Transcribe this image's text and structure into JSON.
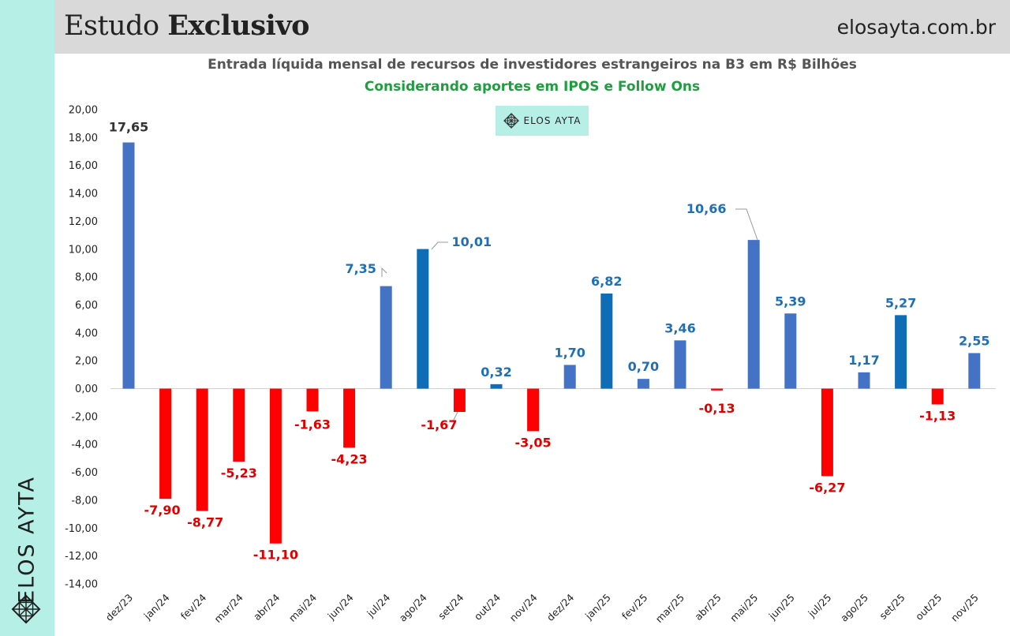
{
  "header": {
    "title_regular": "Estudo ",
    "title_bold": "Exclusivo",
    "site": "elosayta.com.br"
  },
  "sidebar": {
    "brand": "ELOS AYTA",
    "logo_icon": "diamond-lattice-icon"
  },
  "watermark": {
    "text": "ELOS AYTA",
    "icon": "diamond-lattice-icon"
  },
  "colors": {
    "positive": "#4472c4",
    "positive_highlight": "#0f6db5",
    "negative": "#ff0000",
    "label_positive": "#1f6fb5",
    "label_negative": "#e00000",
    "sidebar_bg": "#b6efe6",
    "header_bg": "#d9d9d9",
    "subtitle": "#1e9e3e"
  },
  "chart_data": {
    "type": "bar",
    "title": "Entrada líquida mensal de recursos de investidores estrangeiros na B3 em R$ Bilhões",
    "subtitle": "Considerando aportes em IPOS e Follow Ons",
    "categories": [
      "dez/23",
      "jan/24",
      "fev/24",
      "mar/24",
      "abr/24",
      "mai/24",
      "jun/24",
      "jul/24",
      "ago/24",
      "set/24",
      "out/24",
      "nov/24",
      "dez/24",
      "jan/25",
      "fev/25",
      "mar/25",
      "abr/25",
      "mai/25",
      "jun/25",
      "jul/25",
      "ago/25",
      "set/25",
      "out/25",
      "nov/25"
    ],
    "values": [
      17.65,
      -7.9,
      -8.77,
      -5.23,
      -11.1,
      -1.63,
      -4.23,
      7.35,
      10.01,
      -1.67,
      0.32,
      -3.05,
      1.7,
      6.82,
      0.7,
      3.46,
      -0.13,
      10.66,
      5.39,
      -6.27,
      1.17,
      5.27,
      -1.13,
      2.55
    ],
    "value_labels": [
      "17,65",
      "-7,90",
      "-8,77",
      "-5,23",
      "-11,10",
      "-1,63",
      "-4,23",
      "7,35",
      "10,01",
      "-1,67",
      "0,32",
      "-3,05",
      "1,70",
      "6,82",
      "0,70",
      "3,46",
      "-0,13",
      "10,66",
      "5,39",
      "-6,27",
      "1,17",
      "5,27",
      "-1,13",
      "2,55"
    ],
    "highlighted": [
      "ago/24",
      "out/24",
      "jan/25",
      "set/25"
    ],
    "y_ticks": [
      "20,00",
      "18,00",
      "16,00",
      "14,00",
      "12,00",
      "10,00",
      "8,00",
      "6,00",
      "4,00",
      "2,00",
      "0,00",
      "-2,00",
      "-4,00",
      "-6,00",
      "-8,00",
      "-10,00",
      "-12,00",
      "-14,00"
    ],
    "ylim": [
      -14,
      20
    ],
    "xlabel": "",
    "ylabel": "",
    "grid": false,
    "legend": "none"
  }
}
